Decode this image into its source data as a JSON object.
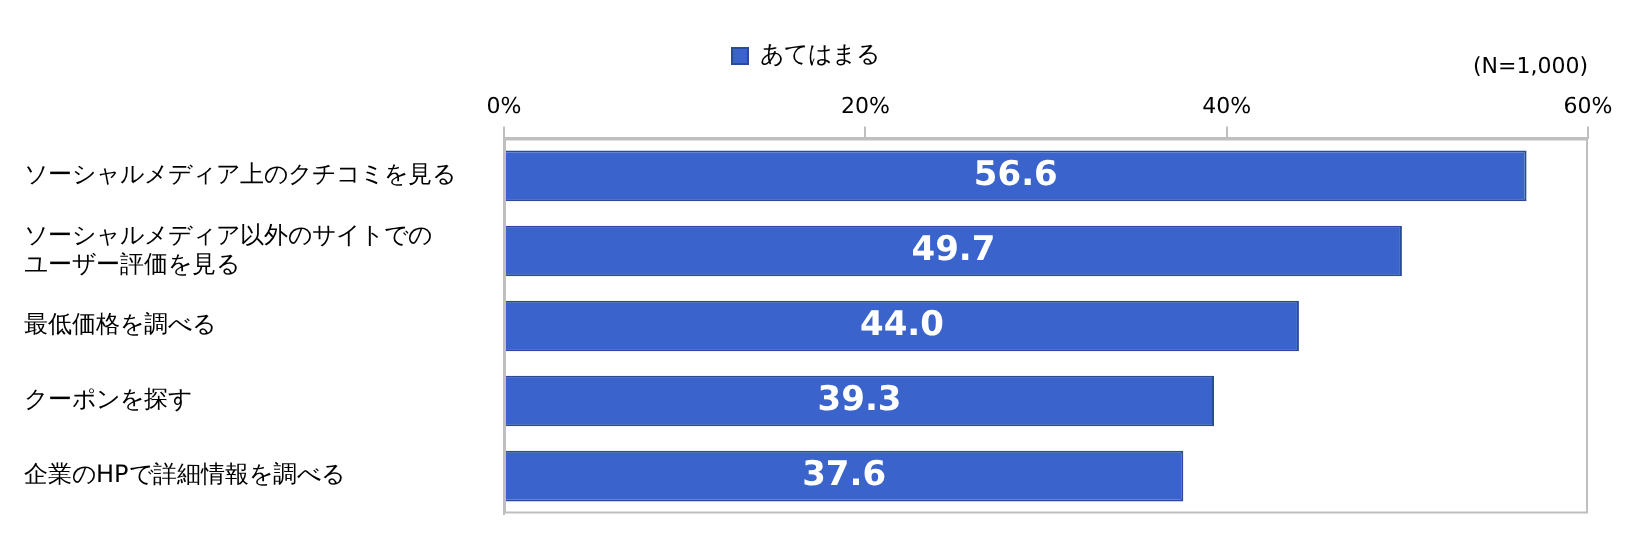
{
  "chart_data": {
    "type": "bar",
    "orientation": "horizontal",
    "categories": [
      "ソーシャルメディア上のクチコミを見る",
      "ソーシャルメディア以外のサイトでのユーザー評価を見る",
      "最低価格を調べる",
      "クーポンを探す",
      "企業のHPで詳細情報を調べる"
    ],
    "series": [
      {
        "name": "あてはまる",
        "color": "#3a64cc",
        "values": [
          56.6,
          49.7,
          44.0,
          39.3,
          37.6
        ],
        "value_labels": [
          "56.6",
          "49.7",
          "44.0",
          "39.3",
          "37.6"
        ]
      }
    ],
    "xlim": [
      0,
      60
    ],
    "xticks": [
      {
        "value": 0,
        "label": "0%"
      },
      {
        "value": 20,
        "label": "20%"
      },
      {
        "value": 40,
        "label": "40%"
      },
      {
        "value": 60,
        "label": "60%"
      }
    ],
    "legend": "top",
    "grid": false,
    "annotations": [
      "(N=1,000)"
    ]
  }
}
